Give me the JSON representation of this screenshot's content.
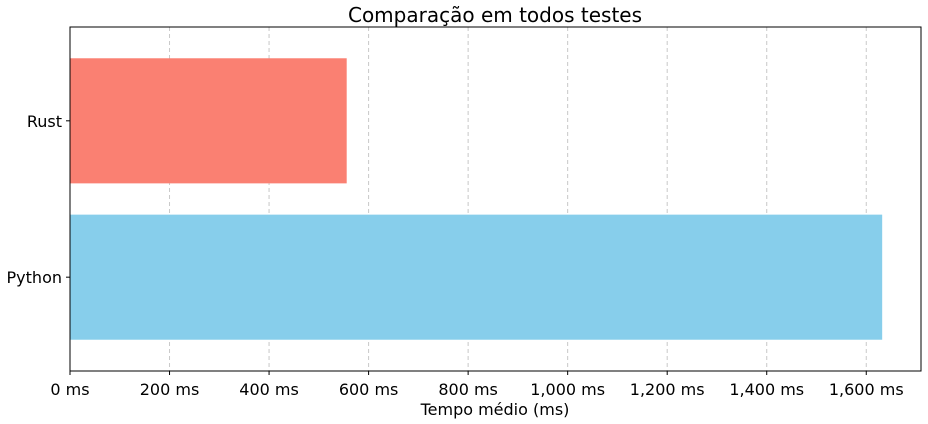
{
  "chart_data": {
    "type": "bar",
    "orientation": "horizontal",
    "title": "Comparação em todos testes",
    "xlabel": "Tempo médio (ms)",
    "ylabel": "",
    "categories": [
      "Python",
      "Rust"
    ],
    "values": [
      1632,
      556
    ],
    "colors": [
      "#87ceeb",
      "#fa8072"
    ],
    "xlim": [
      0,
      1710
    ],
    "xticks": [
      0,
      200,
      400,
      600,
      800,
      1000,
      1200,
      1400,
      1600
    ],
    "xtick_labels": [
      "0 ms",
      "200 ms",
      "400 ms",
      "600 ms",
      "800 ms",
      "1,000 ms",
      "1,200 ms",
      "1,400 ms",
      "1,600 ms"
    ],
    "grid": "x-dashed",
    "legend": "none"
  }
}
